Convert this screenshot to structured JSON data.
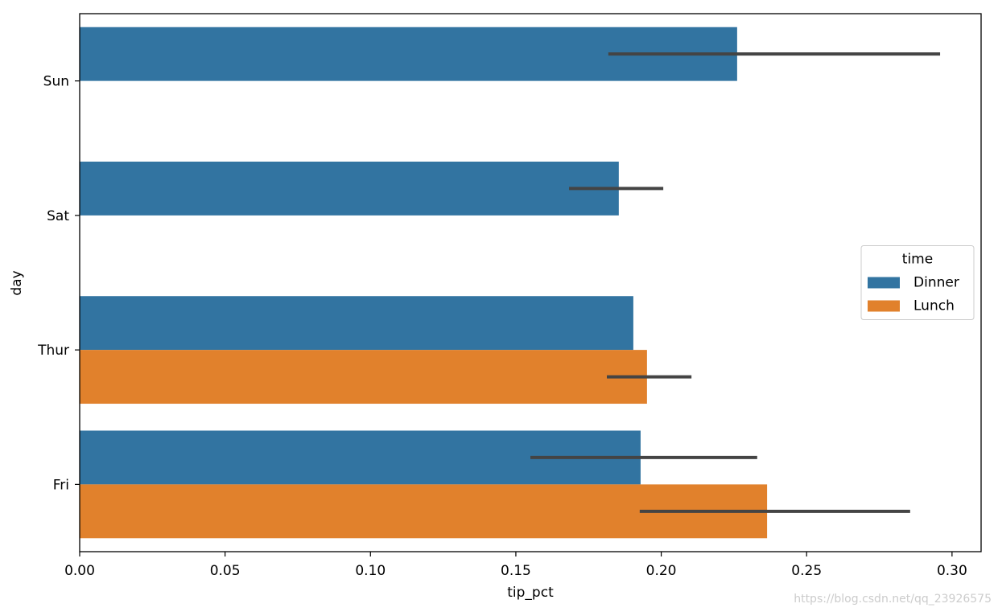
{
  "chart_data": {
    "type": "barh",
    "xlabel": "tip_pct",
    "ylabel": "day",
    "categories": [
      "Sun",
      "Sat",
      "Thur",
      "Fri"
    ],
    "series": [
      {
        "name": "Dinner",
        "color": "#3274a1",
        "values": [
          0.2261,
          0.1854,
          0.1904,
          0.1929
        ],
        "ci_low": [
          0.1818,
          0.1683,
          null,
          0.155
        ],
        "ci_high": [
          0.2959,
          0.2007,
          null,
          0.233
        ]
      },
      {
        "name": "Lunch",
        "color": "#e1812c",
        "values": [
          null,
          null,
          0.1951,
          0.2364
        ],
        "ci_low": [
          null,
          null,
          0.1813,
          0.1926
        ],
        "ci_high": [
          null,
          null,
          0.2104,
          0.2856
        ]
      }
    ],
    "errorbar_color": "#444444",
    "xlim": [
      0,
      0.31
    ],
    "xticks": [
      {
        "value": 0,
        "label": "0.00"
      },
      0.05,
      {
        "value": 0.1,
        "label": "0.10"
      },
      0.15,
      {
        "value": 0.2,
        "label": "0.20"
      },
      0.25,
      {
        "value": 0.3,
        "label": "0.30"
      }
    ],
    "legend_title": "time",
    "legend": "center right",
    "watermark": "https://blog.csdn.net/qq_23926575"
  }
}
